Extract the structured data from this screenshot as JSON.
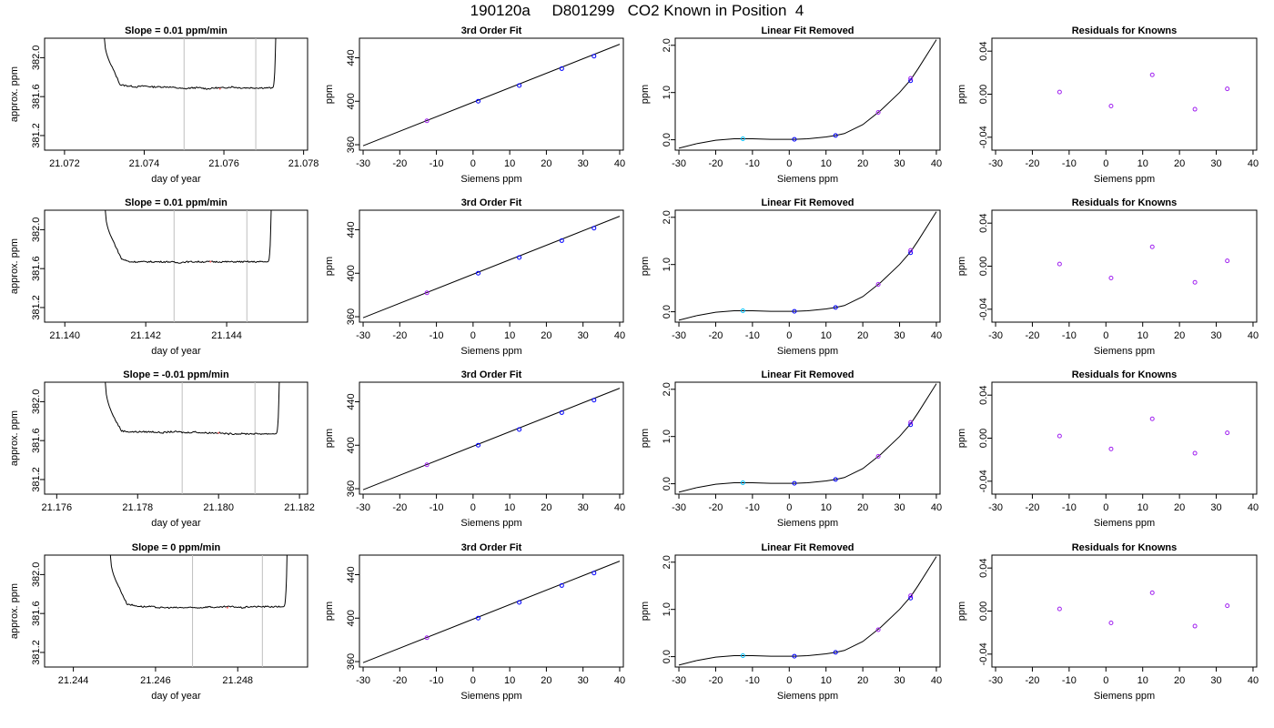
{
  "page": {
    "title": "190120a     D801299   CO2 Known in Position  4"
  },
  "colors": {
    "axis": "#000000",
    "trace": "#000000",
    "vertical_marker": "#bfbfbf",
    "point_blue": "#0000ff",
    "point_purple": "#a020f0",
    "point_cyan": "#00bfff",
    "point_red": "#ff6060"
  },
  "chart_data": [
    {
      "type": "line",
      "row": 0,
      "col": 0,
      "title": "Slope =  0.01  ppm/min",
      "xlabel": "day of year",
      "ylabel": "approx. ppm",
      "xlim": [
        21.0715,
        21.0781
      ],
      "ylim": [
        381.05,
        382.2
      ],
      "xticks": [
        21.072,
        21.074,
        21.076,
        21.078
      ],
      "xtick_labels": [
        "21.072",
        "21.074",
        "21.076",
        "21.078"
      ],
      "yticks": [
        381.2,
        381.6,
        382.0
      ],
      "ytick_labels": [
        "381.2",
        "381.6",
        "382.0"
      ],
      "vlines": [
        21.075,
        21.0768
      ],
      "x": [
        21.073,
        21.0732,
        21.0734,
        21.0736,
        21.0738,
        21.074,
        21.0742,
        21.0744,
        21.0746,
        21.0748,
        21.075,
        21.0752,
        21.0754,
        21.0756,
        21.0758,
        21.076,
        21.0762,
        21.0764,
        21.0766,
        21.0768,
        21.077,
        21.0772,
        21.0773
      ],
      "y": [
        382.2,
        381.9,
        381.72,
        381.71,
        381.7,
        381.71,
        381.7,
        381.7,
        381.7,
        381.69,
        381.68,
        381.69,
        381.69,
        381.68,
        381.69,
        381.69,
        381.7,
        381.69,
        381.69,
        381.69,
        381.69,
        381.69,
        382.2
      ]
    },
    {
      "type": "scatter",
      "row": 0,
      "col": 1,
      "title": "3rd Order Fit",
      "xlabel": "Siemens ppm",
      "ylabel": "ppm",
      "xlim": [
        -31,
        41
      ],
      "ylim": [
        355,
        458
      ],
      "xticks": [
        -30,
        -20,
        -10,
        0,
        10,
        20,
        30,
        40
      ],
      "xtick_labels": [
        "-30",
        "-20",
        "-10",
        "0",
        "10",
        "20",
        "30",
        "40"
      ],
      "yticks": [
        360,
        400,
        440
      ],
      "ytick_labels": [
        "360",
        "400",
        "440"
      ],
      "curve_x": [
        -30,
        40
      ],
      "curve_y": [
        359.0,
        452.5
      ],
      "x": [
        -12.6,
        1.4,
        12.6,
        24.2,
        33.0
      ],
      "y": [
        382.0,
        400.0,
        414.5,
        430.0,
        441.5
      ]
    },
    {
      "type": "scatter",
      "row": 0,
      "col": 2,
      "title": "Linear Fit Removed",
      "xlabel": "Siemens ppm",
      "ylabel": "ppm",
      "xlim": [
        -31,
        41
      ],
      "ylim": [
        -0.22,
        2.15
      ],
      "xticks": [
        -30,
        -20,
        -10,
        0,
        10,
        20,
        30,
        40
      ],
      "xtick_labels": [
        "-30",
        "-20",
        "-10",
        "0",
        "10",
        "20",
        "30",
        "40"
      ],
      "yticks": [
        0.0,
        1.0,
        2.0
      ],
      "ytick_labels": [
        "0.0",
        "1.0",
        "2.0"
      ],
      "curve_x": [
        -30,
        -25,
        -20,
        -15,
        -12.6,
        -10,
        -5,
        0,
        1.4,
        5,
        10,
        12.6,
        15,
        20,
        24.2,
        25,
        30,
        33,
        35,
        40
      ],
      "curve_y": [
        -0.18,
        -0.08,
        -0.01,
        0.02,
        0.02,
        0.02,
        0.01,
        0.01,
        0.01,
        0.02,
        0.06,
        0.09,
        0.13,
        0.32,
        0.58,
        0.63,
        1.0,
        1.27,
        1.5,
        2.12
      ],
      "x": [
        -12.6,
        1.4,
        12.6,
        24.2,
        33.0,
        33.0
      ],
      "y": [
        0.02,
        0.01,
        0.09,
        0.58,
        1.25,
        1.3
      ]
    },
    {
      "type": "scatter",
      "row": 0,
      "col": 3,
      "title": "Residuals for Knowns",
      "xlabel": "Siemens ppm",
      "ylabel": "ppm",
      "xlim": [
        -31,
        41
      ],
      "ylim": [
        -0.052,
        0.052
      ],
      "xticks": [
        -30,
        -20,
        -10,
        0,
        10,
        20,
        30,
        40
      ],
      "xtick_labels": [
        "-30",
        "-20",
        "-10",
        "0",
        "10",
        "20",
        "30",
        "40"
      ],
      "yticks": [
        -0.04,
        0.0,
        0.04
      ],
      "ytick_labels": [
        "-0.04",
        "0.00",
        "0.04"
      ],
      "x": [
        -12.6,
        1.4,
        12.6,
        24.2,
        33.0
      ],
      "y": [
        0.002,
        -0.011,
        0.018,
        -0.014,
        0.005
      ]
    },
    {
      "type": "line",
      "row": 1,
      "col": 0,
      "title": "Slope =  0.01  ppm/min",
      "xlabel": "day of year",
      "ylabel": "approx. ppm",
      "xlim": [
        21.1395,
        21.146
      ],
      "ylim": [
        381.05,
        382.2
      ],
      "xticks": [
        21.14,
        21.142,
        21.144
      ],
      "xtick_labels": [
        "21.140",
        "21.142",
        "21.144"
      ],
      "yticks": [
        381.2,
        381.6,
        382.0
      ],
      "ytick_labels": [
        "381.2",
        "381.6",
        "382.0"
      ],
      "vlines": [
        21.1427,
        21.1445
      ],
      "x": [
        21.141,
        21.1412,
        21.1414,
        21.1416,
        21.1418,
        21.142,
        21.1422,
        21.1424,
        21.1426,
        21.1428,
        21.143,
        21.1432,
        21.1434,
        21.1436,
        21.1438,
        21.144,
        21.1442,
        21.1444,
        21.1446,
        21.1448,
        21.145,
        21.1451
      ],
      "y": [
        382.2,
        381.88,
        381.7,
        381.67,
        381.67,
        381.67,
        381.67,
        381.67,
        381.67,
        381.66,
        381.67,
        381.67,
        381.67,
        381.67,
        381.67,
        381.67,
        381.67,
        381.67,
        381.67,
        381.67,
        381.67,
        382.2
      ]
    },
    {
      "type": "scatter",
      "row": 1,
      "col": 1,
      "title": "3rd Order Fit",
      "xlabel": "Siemens ppm",
      "ylabel": "ppm",
      "xlim": [
        -31,
        41
      ],
      "ylim": [
        355,
        458
      ],
      "xticks": [
        -30,
        -20,
        -10,
        0,
        10,
        20,
        30,
        40
      ],
      "xtick_labels": [
        "-30",
        "-20",
        "-10",
        "0",
        "10",
        "20",
        "30",
        "40"
      ],
      "yticks": [
        360,
        400,
        440
      ],
      "ytick_labels": [
        "360",
        "400",
        "440"
      ],
      "curve_x": [
        -30,
        40
      ],
      "curve_y": [
        359.0,
        452.5
      ],
      "x": [
        -12.6,
        1.4,
        12.6,
        24.2,
        33.0
      ],
      "y": [
        382.0,
        400.0,
        414.5,
        430.0,
        441.5
      ]
    },
    {
      "type": "scatter",
      "row": 1,
      "col": 2,
      "title": "Linear Fit Removed",
      "xlabel": "Siemens ppm",
      "ylabel": "ppm",
      "xlim": [
        -31,
        41
      ],
      "ylim": [
        -0.22,
        2.15
      ],
      "xticks": [
        -30,
        -20,
        -10,
        0,
        10,
        20,
        30,
        40
      ],
      "xtick_labels": [
        "-30",
        "-20",
        "-10",
        "0",
        "10",
        "20",
        "30",
        "40"
      ],
      "yticks": [
        0.0,
        1.0,
        2.0
      ],
      "ytick_labels": [
        "0.0",
        "1.0",
        "2.0"
      ],
      "curve_x": [
        -30,
        -25,
        -20,
        -15,
        -12.6,
        -10,
        -5,
        0,
        1.4,
        5,
        10,
        12.6,
        15,
        20,
        24.2,
        25,
        30,
        33,
        35,
        40
      ],
      "curve_y": [
        -0.18,
        -0.08,
        -0.01,
        0.02,
        0.02,
        0.02,
        0.01,
        0.01,
        0.01,
        0.02,
        0.06,
        0.09,
        0.13,
        0.32,
        0.58,
        0.63,
        1.0,
        1.27,
        1.5,
        2.12
      ],
      "x": [
        -12.6,
        1.4,
        12.6,
        24.2,
        33.0,
        33.0
      ],
      "y": [
        0.02,
        0.01,
        0.09,
        0.58,
        1.25,
        1.3
      ]
    },
    {
      "type": "scatter",
      "row": 1,
      "col": 3,
      "title": "Residuals for Knowns",
      "xlabel": "Siemens ppm",
      "ylabel": "ppm",
      "xlim": [
        -31,
        41
      ],
      "ylim": [
        -0.052,
        0.052
      ],
      "xticks": [
        -30,
        -20,
        -10,
        0,
        10,
        20,
        30,
        40
      ],
      "xtick_labels": [
        "-30",
        "-20",
        "-10",
        "0",
        "10",
        "20",
        "30",
        "40"
      ],
      "yticks": [
        -0.04,
        0.0,
        0.04
      ],
      "ytick_labels": [
        "-0.04",
        "0.00",
        "0.04"
      ],
      "x": [
        -12.6,
        1.4,
        12.6,
        24.2,
        33.0
      ],
      "y": [
        0.002,
        -0.011,
        0.018,
        -0.015,
        0.005
      ]
    },
    {
      "type": "line",
      "row": 2,
      "col": 0,
      "title": "Slope =  -0.01  ppm/min",
      "xlabel": "day of year",
      "ylabel": "approx. ppm",
      "xlim": [
        21.1757,
        21.1822
      ],
      "ylim": [
        381.05,
        382.2
      ],
      "xticks": [
        21.176,
        21.178,
        21.18,
        21.182
      ],
      "xtick_labels": [
        "21.176",
        "21.178",
        "21.180",
        "21.182"
      ],
      "yticks": [
        381.2,
        381.6,
        382.0
      ],
      "ytick_labels": [
        "381.2",
        "381.6",
        "382.0"
      ],
      "vlines": [
        21.1791,
        21.1809
      ],
      "x": [
        21.1772,
        21.1774,
        21.1776,
        21.1778,
        21.178,
        21.1782,
        21.1784,
        21.1786,
        21.1788,
        21.179,
        21.1792,
        21.1794,
        21.1796,
        21.1798,
        21.18,
        21.1802,
        21.1804,
        21.1806,
        21.1808,
        21.181,
        21.1812,
        21.1814,
        21.1815
      ],
      "y": [
        382.2,
        381.85,
        381.7,
        381.69,
        381.69,
        381.69,
        381.69,
        381.68,
        381.69,
        381.69,
        381.68,
        381.69,
        381.68,
        381.68,
        381.68,
        381.67,
        381.67,
        381.67,
        381.67,
        381.67,
        381.67,
        381.67,
        382.2
      ]
    },
    {
      "type": "scatter",
      "row": 2,
      "col": 1,
      "title": "3rd Order Fit",
      "xlabel": "Siemens ppm",
      "ylabel": "ppm",
      "xlim": [
        -31,
        41
      ],
      "ylim": [
        355,
        458
      ],
      "xticks": [
        -30,
        -20,
        -10,
        0,
        10,
        20,
        30,
        40
      ],
      "xtick_labels": [
        "-30",
        "-20",
        "-10",
        "0",
        "10",
        "20",
        "30",
        "40"
      ],
      "yticks": [
        360,
        400,
        440
      ],
      "ytick_labels": [
        "360",
        "400",
        "440"
      ],
      "curve_x": [
        -30,
        40
      ],
      "curve_y": [
        359.0,
        452.5
      ],
      "x": [
        -12.6,
        1.4,
        12.6,
        24.2,
        33.0
      ],
      "y": [
        382.0,
        400.0,
        414.5,
        430.0,
        441.5
      ]
    },
    {
      "type": "scatter",
      "row": 2,
      "col": 2,
      "title": "Linear Fit Removed",
      "xlabel": "Siemens ppm",
      "ylabel": "ppm",
      "xlim": [
        -31,
        41
      ],
      "ylim": [
        -0.22,
        2.15
      ],
      "xticks": [
        -30,
        -20,
        -10,
        0,
        10,
        20,
        30,
        40
      ],
      "xtick_labels": [
        "-30",
        "-20",
        "-10",
        "0",
        "10",
        "20",
        "30",
        "40"
      ],
      "yticks": [
        0.0,
        1.0,
        2.0
      ],
      "ytick_labels": [
        "0.0",
        "1.0",
        "2.0"
      ],
      "curve_x": [
        -30,
        -25,
        -20,
        -15,
        -12.6,
        -10,
        -5,
        0,
        1.4,
        5,
        10,
        12.6,
        15,
        20,
        24.2,
        25,
        30,
        33,
        35,
        40
      ],
      "curve_y": [
        -0.18,
        -0.08,
        -0.01,
        0.02,
        0.02,
        0.02,
        0.01,
        0.01,
        0.01,
        0.02,
        0.06,
        0.09,
        0.13,
        0.32,
        0.58,
        0.63,
        1.0,
        1.27,
        1.5,
        2.12
      ],
      "x": [
        -12.6,
        1.4,
        12.6,
        24.2,
        33.0,
        33.0
      ],
      "y": [
        0.02,
        0.01,
        0.09,
        0.58,
        1.25,
        1.3
      ]
    },
    {
      "type": "scatter",
      "row": 2,
      "col": 3,
      "title": "Residuals for Knowns",
      "xlabel": "Siemens ppm",
      "ylabel": "ppm",
      "xlim": [
        -31,
        41
      ],
      "ylim": [
        -0.052,
        0.052
      ],
      "xticks": [
        -30,
        -20,
        -10,
        0,
        10,
        20,
        30,
        40
      ],
      "xtick_labels": [
        "-30",
        "-20",
        "-10",
        "0",
        "10",
        "20",
        "30",
        "40"
      ],
      "yticks": [
        -0.04,
        0.0,
        0.04
      ],
      "ytick_labels": [
        "-0.04",
        "0.00",
        "0.04"
      ],
      "x": [
        -12.6,
        1.4,
        12.6,
        24.2,
        33.0
      ],
      "y": [
        0.002,
        -0.01,
        0.018,
        -0.014,
        0.005
      ]
    },
    {
      "type": "line",
      "row": 3,
      "col": 0,
      "title": "Slope =  0  ppm/min",
      "xlabel": "day of year",
      "ylabel": "approx. ppm",
      "xlim": [
        21.2433,
        21.2497
      ],
      "ylim": [
        381.05,
        382.2
      ],
      "xticks": [
        21.244,
        21.246,
        21.248
      ],
      "xtick_labels": [
        "21.244",
        "21.246",
        "21.248"
      ],
      "yticks": [
        381.2,
        381.6,
        382.0
      ],
      "ytick_labels": [
        "381.2",
        "381.6",
        "382.0"
      ],
      "vlines": [
        21.2469,
        21.2486
      ],
      "x": [
        21.2449,
        21.2451,
        21.2453,
        21.2455,
        21.2457,
        21.2459,
        21.2461,
        21.2463,
        21.2465,
        21.2467,
        21.2469,
        21.2471,
        21.2473,
        21.2475,
        21.2477,
        21.2479,
        21.2481,
        21.2483,
        21.2485,
        21.2487,
        21.2489,
        21.2491,
        21.2492
      ],
      "y": [
        382.2,
        381.88,
        381.7,
        381.68,
        381.67,
        381.67,
        381.66,
        381.66,
        381.66,
        381.66,
        381.66,
        381.66,
        381.67,
        381.66,
        381.67,
        381.67,
        381.66,
        381.67,
        381.67,
        381.67,
        381.67,
        381.67,
        382.2
      ]
    },
    {
      "type": "scatter",
      "row": 3,
      "col": 1,
      "title": "3rd Order Fit",
      "xlabel": "Siemens ppm",
      "ylabel": "ppm",
      "xlim": [
        -31,
        41
      ],
      "ylim": [
        355,
        458
      ],
      "xticks": [
        -30,
        -20,
        -10,
        0,
        10,
        20,
        30,
        40
      ],
      "xtick_labels": [
        "-30",
        "-20",
        "-10",
        "0",
        "10",
        "20",
        "30",
        "40"
      ],
      "yticks": [
        360,
        400,
        440
      ],
      "ytick_labels": [
        "360",
        "400",
        "440"
      ],
      "curve_x": [
        -30,
        40
      ],
      "curve_y": [
        359.0,
        452.5
      ],
      "x": [
        -12.6,
        1.4,
        12.6,
        24.2,
        33.0
      ],
      "y": [
        382.0,
        400.0,
        414.5,
        430.0,
        441.5
      ]
    },
    {
      "type": "scatter",
      "row": 3,
      "col": 2,
      "title": "Linear Fit Removed",
      "xlabel": "Siemens ppm",
      "ylabel": "ppm",
      "xlim": [
        -31,
        41
      ],
      "ylim": [
        -0.22,
        2.15
      ],
      "xticks": [
        -30,
        -20,
        -10,
        0,
        10,
        20,
        30,
        40
      ],
      "xtick_labels": [
        "-30",
        "-20",
        "-10",
        "0",
        "10",
        "20",
        "30",
        "40"
      ],
      "yticks": [
        0.0,
        1.0,
        2.0
      ],
      "ytick_labels": [
        "0.0",
        "1.0",
        "2.0"
      ],
      "curve_x": [
        -30,
        -25,
        -20,
        -15,
        -12.6,
        -10,
        -5,
        0,
        1.4,
        5,
        10,
        12.6,
        15,
        20,
        24.2,
        25,
        30,
        33,
        35,
        40
      ],
      "curve_y": [
        -0.18,
        -0.08,
        -0.01,
        0.02,
        0.02,
        0.02,
        0.01,
        0.01,
        0.01,
        0.02,
        0.06,
        0.09,
        0.13,
        0.32,
        0.58,
        0.63,
        1.0,
        1.27,
        1.5,
        2.12
      ],
      "x": [
        -12.6,
        1.4,
        12.6,
        24.2,
        33.0,
        33.0
      ],
      "y": [
        0.02,
        0.01,
        0.09,
        0.57,
        1.24,
        1.29
      ]
    },
    {
      "type": "scatter",
      "row": 3,
      "col": 3,
      "title": "Residuals for Knowns",
      "xlabel": "Siemens ppm",
      "ylabel": "ppm",
      "xlim": [
        -31,
        41
      ],
      "ylim": [
        -0.052,
        0.052
      ],
      "xticks": [
        -30,
        -20,
        -10,
        0,
        10,
        20,
        30,
        40
      ],
      "xtick_labels": [
        "-30",
        "-20",
        "-10",
        "0",
        "10",
        "20",
        "30",
        "40"
      ],
      "yticks": [
        -0.04,
        0.0,
        0.04
      ],
      "ytick_labels": [
        "-0.04",
        "0.00",
        "0.04"
      ],
      "x": [
        -12.6,
        1.4,
        12.6,
        24.2,
        33.0
      ],
      "y": [
        0.002,
        -0.011,
        0.017,
        -0.014,
        0.005
      ]
    }
  ]
}
